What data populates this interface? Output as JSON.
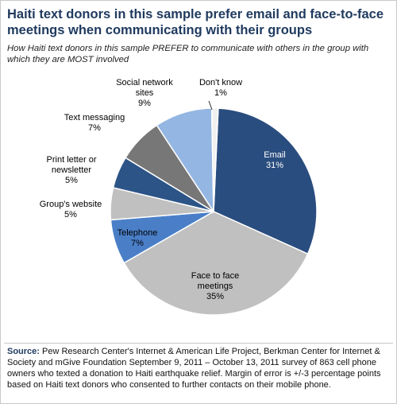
{
  "header": {
    "title_line1": "Haiti text donors in this sample prefer email and face-to-face",
    "title_line2": "meetings when communicating with their groups",
    "subtitle": "How Haiti text donors in this sample PREFER to communicate with others in the group with which they are MOST involved"
  },
  "chart_data": {
    "type": "pie",
    "title": "Haiti text donors in this sample prefer email and face-to-face meetings when communicating with their groups",
    "slices": [
      {
        "label_lines": [
          "Email",
          "31%"
        ],
        "value": 31,
        "color": "#2a4d7f"
      },
      {
        "label_lines": [
          "Face to face",
          "meetings",
          "35%"
        ],
        "value": 35,
        "color": "#c0c0c0"
      },
      {
        "label_lines": [
          "Telephone",
          "7%"
        ],
        "value": 7,
        "color": "#4a7fc8"
      },
      {
        "label_lines": [
          "Group's website",
          "5%"
        ],
        "value": 5,
        "color": "#c0c0c0"
      },
      {
        "label_lines": [
          "Print letter or",
          "newsletter",
          "5%"
        ],
        "value": 5,
        "color": "#2c5487"
      },
      {
        "label_lines": [
          "Text messaging",
          "7%"
        ],
        "value": 7,
        "color": "#777777"
      },
      {
        "label_lines": [
          "Social network",
          "sites",
          "9%"
        ],
        "value": 9,
        "color": "#94b6e2"
      },
      {
        "label_lines": [
          "Don't know",
          "1%"
        ],
        "value": 1,
        "color": "#f0f0f0"
      }
    ]
  },
  "footer": {
    "source_label": "Source:",
    "source_text": " Pew Research Center's Internet & American Life Project, Berkman Center for Internet & Society and mGive Foundation September 9, 2011 – October 13, 2011 survey of 863 cell phone owners who texted a donation to Haiti earthquake relief. Margin of error is +/-3 percentage points based on Haiti text donors who consented to further contacts on their mobile phone."
  }
}
